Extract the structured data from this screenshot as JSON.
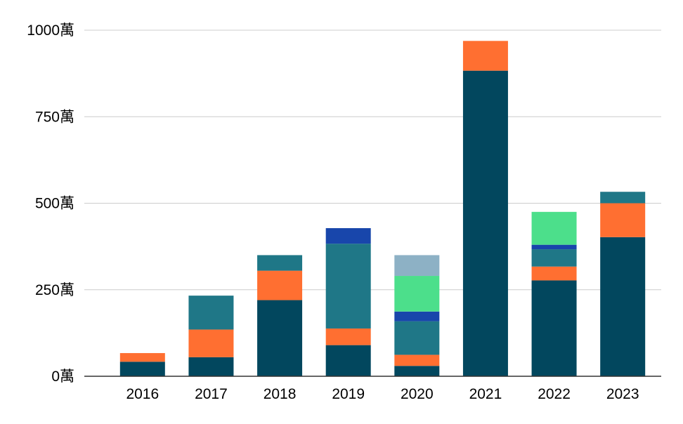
{
  "chart_data": {
    "type": "bar",
    "stacked": true,
    "title": "",
    "xlabel": "",
    "ylabel": "",
    "ylim": [
      0,
      1000
    ],
    "yticks": [
      0,
      250,
      500,
      750,
      1000
    ],
    "ytick_labels": [
      "0萬",
      "250萬",
      "500萬",
      "750萬",
      "1000萬"
    ],
    "grid": true,
    "legend": "none",
    "categories": [
      "2016",
      "2017",
      "2018",
      "2019",
      "2020",
      "2021",
      "2022",
      "2023"
    ],
    "series": [
      {
        "color": "#02475E",
        "values": [
          42,
          55,
          220,
          90,
          30,
          883,
          277,
          402
        ]
      },
      {
        "color": "#FF6F31",
        "values": [
          25,
          80,
          85,
          48,
          32,
          86,
          40,
          98
        ]
      },
      {
        "color": "#1F7787",
        "values": [
          0,
          98,
          45,
          245,
          97,
          0,
          50,
          33
        ]
      },
      {
        "color": "#1846AB",
        "values": [
          0,
          0,
          0,
          45,
          28,
          0,
          13,
          0
        ]
      },
      {
        "color": "#4CDF8B",
        "values": [
          0,
          0,
          0,
          0,
          103,
          0,
          95,
          0
        ]
      },
      {
        "color": "#8DB1C5",
        "values": [
          0,
          0,
          0,
          0,
          60,
          0,
          0,
          0
        ]
      }
    ]
  }
}
